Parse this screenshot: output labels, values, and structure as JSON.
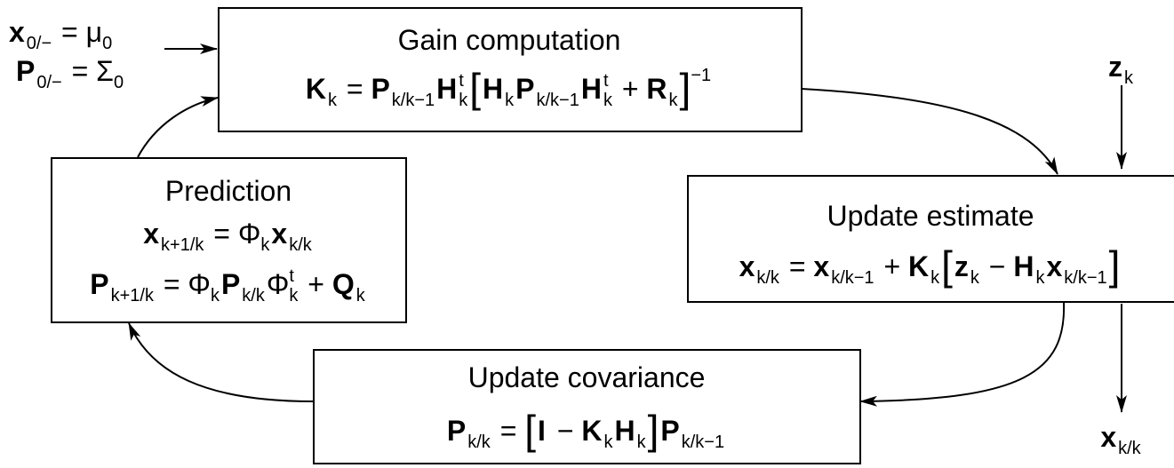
{
  "inputs": [
    [
      {
        "b": "x",
        "s": "0/−"
      },
      " = ",
      {
        "b": "μ",
        "s": "0"
      }
    ],
    [
      {
        "b": "P",
        "s": "0/−"
      },
      " = ",
      {
        "b": "Σ",
        "s": "0"
      }
    ]
  ],
  "boxes": [
    {
      "title": "Gain computation",
      "equations": [
        [
          {
            "b": "K",
            "s": "k"
          },
          " = ",
          {
            "b": "P",
            "s": "k/k−1"
          },
          {
            "b": "H",
            "s": "k",
            "p": "t"
          },
          {
            "b": "["
          },
          {
            "b": "H",
            "s": "k"
          },
          {
            "b": "P",
            "s": "k/k−1"
          },
          {
            "b": "H",
            "s": "k",
            "p": "t"
          },
          " + ",
          {
            "b": "R",
            "s": "k"
          },
          {
            "b": "]",
            "p": "−1"
          }
        ]
      ]
    },
    {
      "title": "Prediction",
      "equations": [
        [
          {
            "b": "x",
            "s": "k+1/k"
          },
          " = ",
          {
            "b": "Φ",
            "s": "k"
          },
          {
            "b": "x",
            "s": "k/k"
          }
        ],
        [
          {
            "b": "P",
            "s": "k+1/k"
          },
          " = ",
          {
            "b": "Φ",
            "s": "k"
          },
          {
            "b": "P",
            "s": "k/k"
          },
          {
            "b": "Φ",
            "s": "k",
            "p": "t"
          },
          " + ",
          {
            "b": "Q",
            "s": "k"
          }
        ]
      ]
    },
    {
      "title": "Update estimate",
      "equations": [
        [
          {
            "b": "x",
            "s": "k/k"
          },
          " = ",
          {
            "b": "x",
            "s": "k/k−1"
          },
          " + ",
          {
            "b": "K",
            "s": "k"
          },
          {
            "b": "["
          },
          {
            "b": "z",
            "s": "k"
          },
          " − ",
          {
            "b": "H",
            "s": "k"
          },
          {
            "b": "x",
            "s": "k/k−1"
          },
          {
            "b": "]"
          }
        ]
      ]
    },
    {
      "title": "Update covariance",
      "equations": [
        [
          {
            "b": "P",
            "s": "k/k"
          },
          " = ",
          {
            "b": "["
          },
          {
            "b": "I"
          },
          " − ",
          {
            "b": "K",
            "s": "k"
          },
          {
            "b": "H",
            "s": "k"
          },
          {
            "b": "]"
          },
          {
            "b": "P",
            "s": "k/k−1"
          }
        ]
      ]
    }
  ],
  "measurement": [
    {
      "b": "z",
      "s": "k"
    }
  ],
  "output": [
    {
      "b": "x",
      "s": "k/k"
    }
  ]
}
